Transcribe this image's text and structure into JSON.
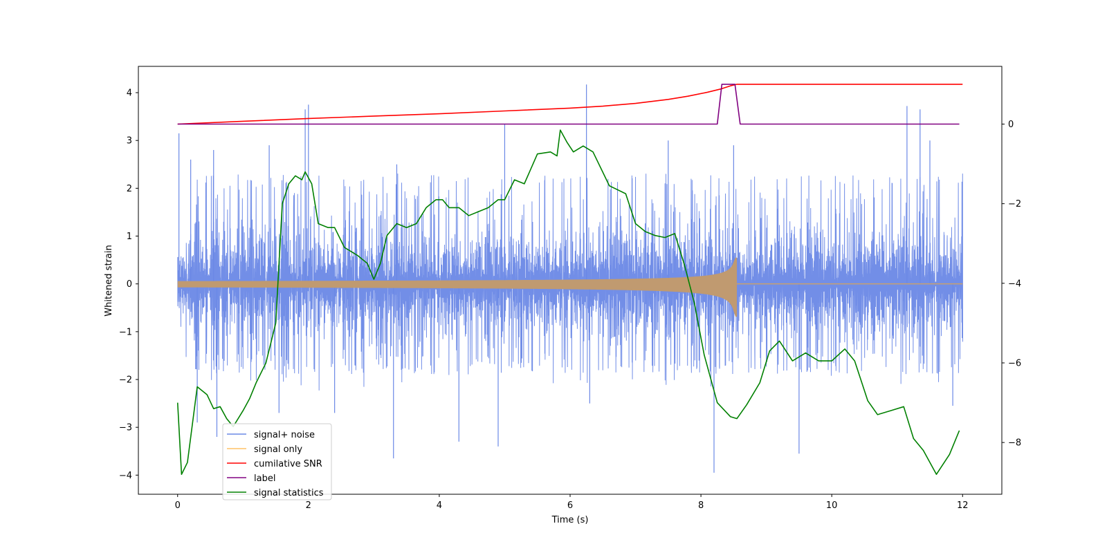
{
  "chart_data": {
    "type": "line",
    "xlabel": "Time (s)",
    "ylabel": "Whitened strain",
    "xlim": [
      -0.6,
      12.6
    ],
    "ylim": [
      -4.4,
      4.55
    ],
    "y2lim": [
      -9.3,
      1.45
    ],
    "x_ticks": [
      0,
      2,
      4,
      6,
      8,
      10,
      12
    ],
    "y_ticks": [
      -4,
      -3,
      -2,
      -1,
      0,
      1,
      2,
      3,
      4
    ],
    "y2_ticks": [
      -8,
      -6,
      -4,
      -2,
      0
    ],
    "legend_placement": "lower-left",
    "grid": false,
    "series": [
      {
        "name": "signal+ noise",
        "axis": "left",
        "color": "#6a88e6",
        "description_type": "noise",
        "x_range": [
          0,
          12
        ],
        "envelope": [
          -1.8,
          2.2
        ],
        "spikes": [
          {
            "x": 0.02,
            "y": 3.15
          },
          {
            "x": 0.2,
            "y": 2.6
          },
          {
            "x": 0.3,
            "y": -2.9
          },
          {
            "x": 0.55,
            "y": 2.8
          },
          {
            "x": 0.6,
            "y": -3.2
          },
          {
            "x": 1.4,
            "y": 2.9
          },
          {
            "x": 1.55,
            "y": -2.7
          },
          {
            "x": 1.95,
            "y": 3.65
          },
          {
            "x": 2.0,
            "y": 3.75
          },
          {
            "x": 2.4,
            "y": -2.7
          },
          {
            "x": 3.3,
            "y": -3.65
          },
          {
            "x": 3.35,
            "y": 2.5
          },
          {
            "x": 4.3,
            "y": -3.3
          },
          {
            "x": 4.9,
            "y": -3.4
          },
          {
            "x": 5.0,
            "y": 3.35
          },
          {
            "x": 6.25,
            "y": 4.17
          },
          {
            "x": 6.3,
            "y": -2.5
          },
          {
            "x": 7.5,
            "y": 3.0
          },
          {
            "x": 8.2,
            "y": -3.95
          },
          {
            "x": 8.5,
            "y": 2.9
          },
          {
            "x": 9.5,
            "y": -3.55
          },
          {
            "x": 11.15,
            "y": 3.72
          },
          {
            "x": 11.35,
            "y": 3.65
          },
          {
            "x": 11.5,
            "y": 3.0
          },
          {
            "x": 11.85,
            "y": -2.55
          }
        ]
      },
      {
        "name": "signal only",
        "axis": "left",
        "color": "#ffc266",
        "description_type": "chirp",
        "x_range": [
          0,
          12
        ],
        "merger_time": 8.55,
        "peak_amplitude": 0.55
      },
      {
        "name": "cumilative SNR",
        "axis": "right",
        "color": "#ff0000",
        "x": [
          0,
          1,
          2,
          3,
          4,
          5,
          6,
          6.5,
          7,
          7.5,
          7.8,
          8.1,
          8.3,
          8.45,
          8.55,
          9,
          10,
          11,
          12
        ],
        "y": [
          0,
          0.07,
          0.14,
          0.2,
          0.26,
          0.33,
          0.4,
          0.45,
          0.52,
          0.62,
          0.7,
          0.8,
          0.88,
          0.96,
          1,
          1,
          1,
          1,
          1
        ]
      },
      {
        "name": "label",
        "axis": "right",
        "color": "#800080",
        "x": [
          0,
          8.25,
          8.32,
          8.52,
          8.6,
          11.95
        ],
        "y": [
          0,
          0,
          1,
          1,
          0,
          0
        ]
      },
      {
        "name": "signal statistics",
        "axis": "right",
        "color": "#008000",
        "x": [
          0,
          0.06,
          0.15,
          0.3,
          0.45,
          0.55,
          0.65,
          0.75,
          0.85,
          1.0,
          1.1,
          1.2,
          1.35,
          1.5,
          1.6,
          1.7,
          1.8,
          1.9,
          1.95,
          2.05,
          2.15,
          2.3,
          2.4,
          2.55,
          2.75,
          2.9,
          3.0,
          3.1,
          3.2,
          3.35,
          3.5,
          3.65,
          3.8,
          3.95,
          4.05,
          4.15,
          4.3,
          4.45,
          4.6,
          4.75,
          4.9,
          5.0,
          5.15,
          5.3,
          5.5,
          5.7,
          5.8,
          5.85,
          5.95,
          6.05,
          6.2,
          6.35,
          6.6,
          6.85,
          7.0,
          7.15,
          7.3,
          7.45,
          7.6,
          7.75,
          7.9,
          8.05,
          8.25,
          8.45,
          8.55,
          8.7,
          8.9,
          9.05,
          9.2,
          9.4,
          9.6,
          9.8,
          10.0,
          10.2,
          10.35,
          10.55,
          10.7,
          10.9,
          11.1,
          11.25,
          11.4,
          11.6,
          11.8,
          11.95
        ],
        "y": [
          -7.0,
          -8.8,
          -8.5,
          -6.6,
          -6.8,
          -7.15,
          -7.1,
          -7.4,
          -7.6,
          -7.2,
          -6.9,
          -6.5,
          -6.0,
          -5.0,
          -2.0,
          -1.5,
          -1.3,
          -1.4,
          -1.2,
          -1.5,
          -2.5,
          -2.6,
          -2.6,
          -3.1,
          -3.3,
          -3.5,
          -3.9,
          -3.5,
          -2.8,
          -2.5,
          -2.6,
          -2.5,
          -2.1,
          -1.9,
          -1.9,
          -2.1,
          -2.1,
          -2.3,
          -2.2,
          -2.1,
          -1.9,
          -1.9,
          -1.4,
          -1.5,
          -0.75,
          -0.7,
          -0.8,
          -0.15,
          -0.45,
          -0.7,
          -0.55,
          -0.7,
          -1.55,
          -1.75,
          -2.5,
          -2.7,
          -2.8,
          -2.85,
          -2.75,
          -3.55,
          -4.5,
          -5.8,
          -7.0,
          -7.35,
          -7.4,
          -7.05,
          -6.5,
          -5.7,
          -5.45,
          -5.95,
          -5.75,
          -5.95,
          -5.95,
          -5.65,
          -5.95,
          -6.95,
          -7.3,
          -7.2,
          -7.1,
          -7.9,
          -8.2,
          -8.8,
          -8.3,
          -7.7
        ]
      }
    ]
  }
}
